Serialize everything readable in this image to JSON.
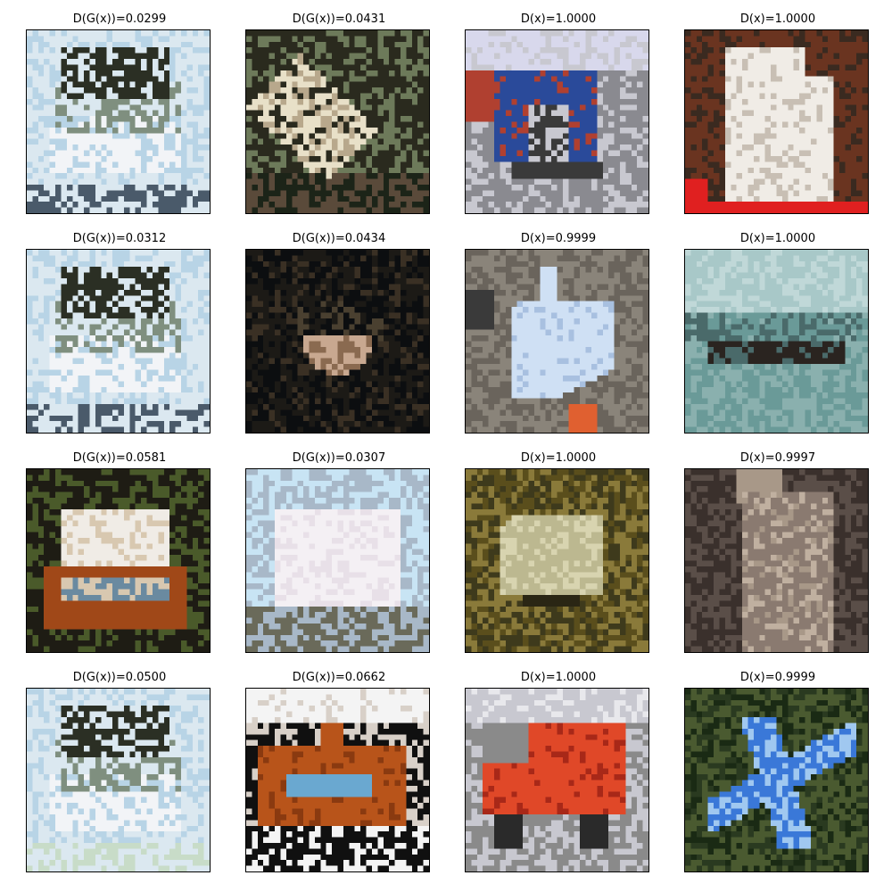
{
  "figure": {
    "panels": [
      {
        "title": "D(G(x))=0.0299",
        "kind": "generated",
        "scene": "gen-pale",
        "palette": [
          "#dbe8f0",
          "#b8d4e6",
          "#2b2f24",
          "#f2f4f7",
          "#7f8f7f",
          "#4a5a6a"
        ]
      },
      {
        "title": "D(G(x))=0.0431",
        "kind": "generated",
        "scene": "gen-dark",
        "palette": [
          "#2a2a1e",
          "#e8e0c8",
          "#5a4a3a",
          "#1c2418",
          "#b8a88c",
          "#6d7a5a"
        ]
      },
      {
        "title": "D(x)=1.0000",
        "kind": "real",
        "scene": "truck-blue",
        "palette": [
          "#d8d8ec",
          "#2a4a9a",
          "#8a8a90",
          "#b04030",
          "#3a3a3a",
          "#c8c8d0"
        ]
      },
      {
        "title": "D(x)=1.0000",
        "kind": "real",
        "scene": "dog-white",
        "palette": [
          "#6a3420",
          "#f0ece6",
          "#c8bfb4",
          "#e02020",
          "#3a2a20",
          "#d8cfc6"
        ]
      },
      {
        "title": "D(G(x))=0.0312",
        "kind": "generated",
        "scene": "gen-pale",
        "palette": [
          "#dbe8f0",
          "#b8d4e6",
          "#2b2f24",
          "#f2f4f7",
          "#7f8f7f",
          "#4a5a6a"
        ]
      },
      {
        "title": "D(G(x))=0.0434",
        "kind": "generated",
        "scene": "gen-night",
        "palette": [
          "#0c0e10",
          "#3a3024",
          "#8a6a50",
          "#1c1a16",
          "#c8a890",
          "#4a4030"
        ]
      },
      {
        "title": "D(x)=0.9999",
        "kind": "real",
        "scene": "ship-gray",
        "palette": [
          "#6a645c",
          "#cfe0f4",
          "#3a3a3a",
          "#e06030",
          "#8a847a",
          "#a8c0e0"
        ]
      },
      {
        "title": "D(x)=1.0000",
        "kind": "real",
        "scene": "ship-teal",
        "palette": [
          "#a8c8c8",
          "#6a9a98",
          "#2a2420",
          "#8ab0ae",
          "#4a6a6a",
          "#c0d8d8"
        ]
      },
      {
        "title": "D(G(x))=0.0581",
        "kind": "generated",
        "scene": "gen-car",
        "palette": [
          "#1e1c14",
          "#f0ece6",
          "#a04818",
          "#4a5a2a",
          "#6a8aa0",
          "#d8c8b0"
        ]
      },
      {
        "title": "D(G(x))=0.0307",
        "kind": "generated",
        "scene": "gen-bright",
        "palette": [
          "#c8e4f4",
          "#f4f0f4",
          "#6a6a5a",
          "#a8b8c8",
          "#3a3a30",
          "#e8e0e8"
        ]
      },
      {
        "title": "D(x)=1.0000",
        "kind": "real",
        "scene": "frog",
        "palette": [
          "#5a4e1c",
          "#bcb890",
          "#2a2614",
          "#8a7a3a",
          "#d8d4b0",
          "#3e3a1c"
        ]
      },
      {
        "title": "D(x)=0.9997",
        "kind": "real",
        "scene": "cat",
        "palette": [
          "#5a4e48",
          "#8a7a70",
          "#c0b0a0",
          "#3a302c",
          "#a89888",
          "#6a5e56"
        ]
      },
      {
        "title": "D(G(x))=0.0500",
        "kind": "generated",
        "scene": "gen-pale",
        "palette": [
          "#dbe8f0",
          "#b8d4e6",
          "#2b2f24",
          "#f2f4f7",
          "#7f8f7f",
          "#c8dcc8"
        ]
      },
      {
        "title": "D(G(x))=0.0662",
        "kind": "generated",
        "scene": "gen-boat",
        "palette": [
          "#f4f4f4",
          "#b8541a",
          "#101010",
          "#6aa8d0",
          "#8a3a10",
          "#d8d0c8"
        ]
      },
      {
        "title": "D(x)=1.0000",
        "kind": "real",
        "scene": "truck-red",
        "palette": [
          "#c8c8d0",
          "#e04828",
          "#2a2a2a",
          "#8a8a8a",
          "#a82818",
          "#e8e8ec"
        ]
      },
      {
        "title": "D(x)=0.9999",
        "kind": "real",
        "scene": "plane-toy",
        "palette": [
          "#2a3a20",
          "#3a78d8",
          "#a0c8f0",
          "#4a5a30",
          "#1a2a14",
          "#e8e8f4"
        ]
      }
    ]
  }
}
